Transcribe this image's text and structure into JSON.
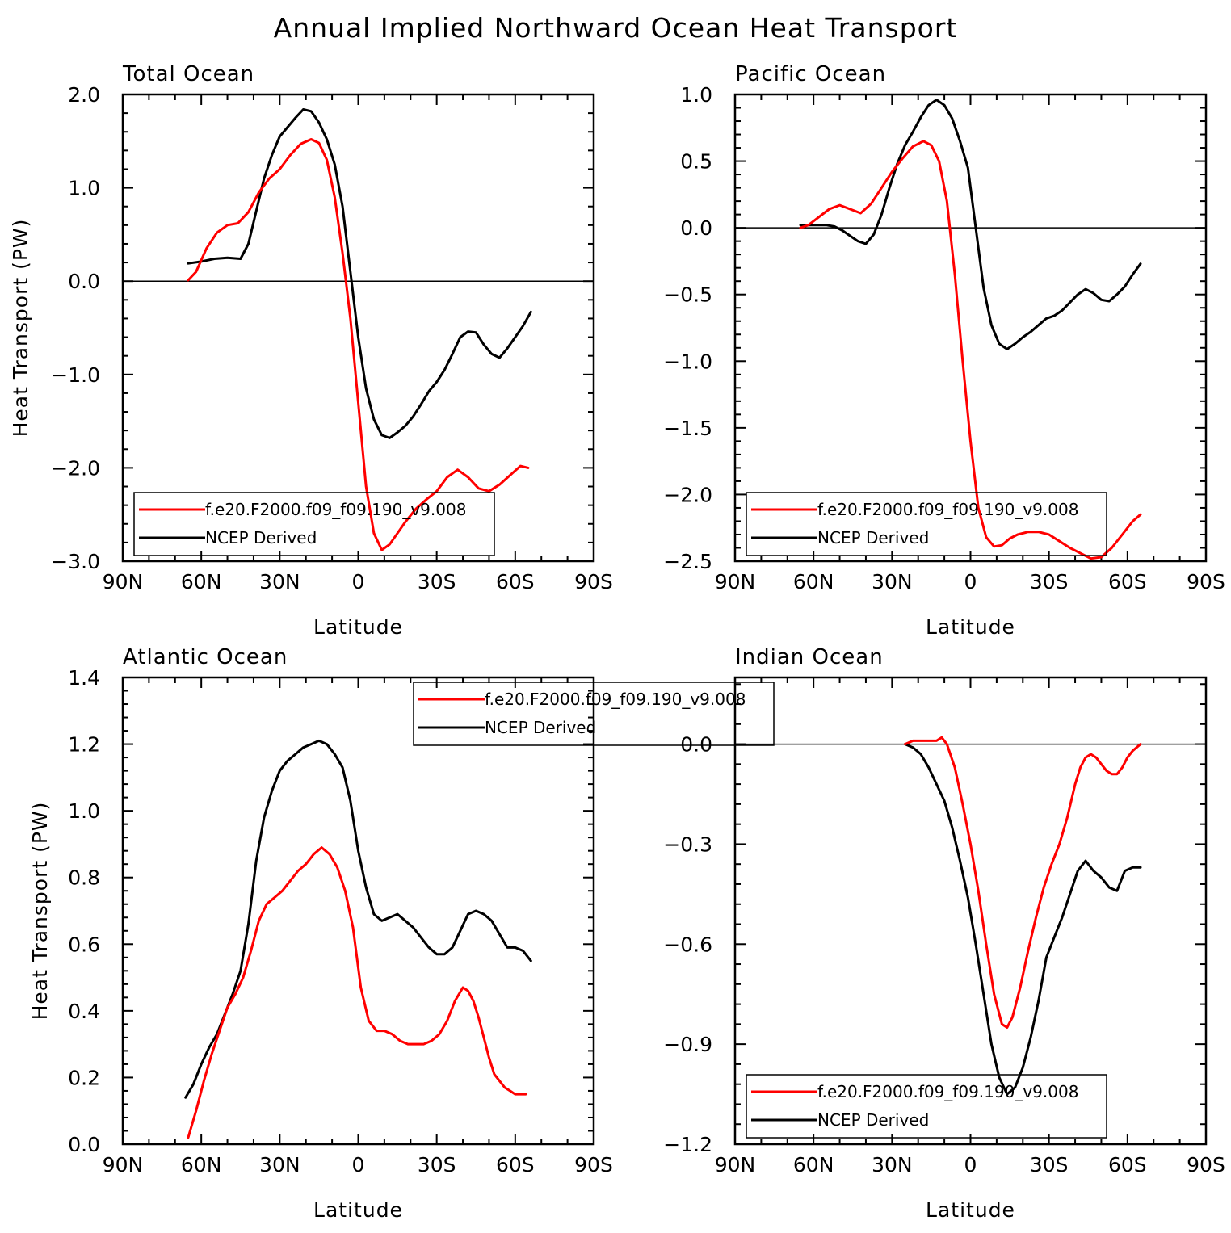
{
  "figure_title": "Annual Implied Northward Ocean Heat Transport",
  "colors": {
    "model": "#ff0000",
    "obs": "#000000"
  },
  "chart_data": [
    {
      "type": "line",
      "title": "Total Ocean",
      "xlabel": "Latitude",
      "ylabel": "Heat Transport (PW)",
      "xlim": [
        90,
        -90
      ],
      "xticks": [
        90,
        60,
        30,
        0,
        -30,
        -60,
        -90
      ],
      "xticklabels": [
        "90N",
        "60N",
        "30N",
        "0",
        "30S",
        "60S",
        "90S"
      ],
      "ylim": [
        -3.0,
        2.0
      ],
      "yticks": [
        -3.0,
        -2.0,
        -1.0,
        0.0,
        1.0,
        2.0
      ],
      "yticklabels": [
        "−3.0",
        "−2.0",
        "−1.0",
        "0.0",
        "1.0",
        "2.0"
      ],
      "legend_labels": [
        "f.e20.F2000.f09_f09.190_v9.008",
        "NCEP Derived"
      ],
      "legend_position": "bottom-left",
      "series": [
        {
          "name": "f.e20.F2000.f09_f09.190_v9.008",
          "color": "#ff0000",
          "x": [
            65,
            62,
            58,
            54,
            50,
            46,
            42,
            38,
            34,
            30,
            26,
            22,
            18,
            15,
            12,
            9,
            6,
            3,
            0,
            -3,
            -6,
            -9,
            -12,
            -15,
            -18,
            -22,
            -26,
            -30,
            -34,
            -38,
            -42,
            -46,
            -50,
            -54,
            -58,
            -62,
            -65
          ],
          "y": [
            0.01,
            0.1,
            0.35,
            0.52,
            0.6,
            0.62,
            0.74,
            0.95,
            1.1,
            1.2,
            1.35,
            1.47,
            1.52,
            1.48,
            1.3,
            0.9,
            0.3,
            -0.4,
            -1.3,
            -2.2,
            -2.7,
            -2.88,
            -2.82,
            -2.7,
            -2.58,
            -2.44,
            -2.34,
            -2.25,
            -2.1,
            -2.02,
            -2.1,
            -2.22,
            -2.25,
            -2.18,
            -2.08,
            -1.98,
            -2.0
          ]
        },
        {
          "name": "NCEP Derived",
          "color": "#000000",
          "x": [
            65,
            60,
            55,
            50,
            45,
            42,
            39,
            36,
            33,
            30,
            27,
            24,
            21,
            18,
            15,
            12,
            9,
            6,
            3,
            0,
            -3,
            -6,
            -9,
            -12,
            -15,
            -18,
            -21,
            -24,
            -27,
            -30,
            -33,
            -36,
            -39,
            -42,
            -45,
            -48,
            -51,
            -54,
            -57,
            -60,
            -63,
            -66
          ],
          "y": [
            0.19,
            0.21,
            0.24,
            0.25,
            0.24,
            0.4,
            0.75,
            1.1,
            1.35,
            1.55,
            1.65,
            1.75,
            1.84,
            1.82,
            1.7,
            1.52,
            1.25,
            0.8,
            0.1,
            -0.6,
            -1.15,
            -1.48,
            -1.65,
            -1.68,
            -1.62,
            -1.55,
            -1.45,
            -1.32,
            -1.18,
            -1.08,
            -0.95,
            -0.78,
            -0.6,
            -0.54,
            -0.55,
            -0.68,
            -0.78,
            -0.82,
            -0.72,
            -0.6,
            -0.48,
            -0.33
          ]
        }
      ]
    },
    {
      "type": "line",
      "title": "Pacific Ocean",
      "xlabel": "Latitude",
      "ylabel": "",
      "xlim": [
        90,
        -90
      ],
      "xticks": [
        90,
        60,
        30,
        0,
        -30,
        -60,
        -90
      ],
      "xticklabels": [
        "90N",
        "60N",
        "30N",
        "0",
        "30S",
        "60S",
        "90S"
      ],
      "ylim": [
        -2.5,
        1.0
      ],
      "yticks": [
        -2.5,
        -2.0,
        -1.5,
        -1.0,
        -0.5,
        0.0,
        0.5,
        1.0
      ],
      "yticklabels": [
        "−2.5",
        "−2.0",
        "−1.5",
        "−1.0",
        "−0.5",
        "0.0",
        "0.5",
        "1.0"
      ],
      "legend_labels": [
        "f.e20.F2000.f09_f09.190_v9.008",
        "NCEP Derived"
      ],
      "legend_position": "bottom-left",
      "series": [
        {
          "name": "f.e20.F2000.f09_f09.190_v9.008",
          "color": "#ff0000",
          "x": [
            65,
            62,
            58,
            54,
            50,
            46,
            42,
            38,
            34,
            30,
            26,
            22,
            18,
            15,
            12,
            9,
            6,
            3,
            0,
            -3,
            -6,
            -9,
            -12,
            -15,
            -18,
            -22,
            -26,
            -30,
            -34,
            -38,
            -42,
            -46,
            -50,
            -54,
            -58,
            -62,
            -65
          ],
          "y": [
            0.0,
            0.02,
            0.08,
            0.14,
            0.17,
            0.14,
            0.11,
            0.18,
            0.3,
            0.42,
            0.52,
            0.61,
            0.65,
            0.62,
            0.5,
            0.2,
            -0.35,
            -1.0,
            -1.6,
            -2.1,
            -2.32,
            -2.39,
            -2.38,
            -2.33,
            -2.3,
            -2.28,
            -2.28,
            -2.3,
            -2.35,
            -2.4,
            -2.44,
            -2.48,
            -2.47,
            -2.4,
            -2.3,
            -2.2,
            -2.15
          ]
        },
        {
          "name": "NCEP Derived",
          "color": "#000000",
          "x": [
            65,
            60,
            55,
            52,
            49,
            46,
            43,
            40,
            37,
            34,
            31,
            28,
            25,
            22,
            19,
            16,
            13,
            10,
            7,
            4,
            1,
            -2,
            -5,
            -8,
            -11,
            -14,
            -17,
            -20,
            -23,
            -26,
            -29,
            -32,
            -35,
            -38,
            -41,
            -44,
            -47,
            -50,
            -53,
            -56,
            -59,
            -62,
            -65
          ],
          "y": [
            0.02,
            0.02,
            0.02,
            0.01,
            -0.02,
            -0.06,
            -0.1,
            -0.12,
            -0.05,
            0.1,
            0.3,
            0.48,
            0.62,
            0.72,
            0.83,
            0.92,
            0.96,
            0.92,
            0.82,
            0.65,
            0.45,
            0.0,
            -0.45,
            -0.73,
            -0.87,
            -0.91,
            -0.87,
            -0.82,
            -0.78,
            -0.73,
            -0.68,
            -0.66,
            -0.62,
            -0.56,
            -0.5,
            -0.46,
            -0.49,
            -0.54,
            -0.55,
            -0.5,
            -0.44,
            -0.35,
            -0.27
          ]
        }
      ]
    },
    {
      "type": "line",
      "title": "Atlantic Ocean",
      "xlabel": "Latitude",
      "ylabel": "Heat Transport (PW)",
      "xlim": [
        90,
        -90
      ],
      "xticks": [
        90,
        60,
        30,
        0,
        -30,
        -60,
        -90
      ],
      "xticklabels": [
        "90N",
        "60N",
        "30N",
        "0",
        "30S",
        "60S",
        "90S"
      ],
      "ylim": [
        0.0,
        1.4
      ],
      "yticks": [
        0.0,
        0.2,
        0.4,
        0.6,
        0.8,
        1.0,
        1.2,
        1.4
      ],
      "yticklabels": [
        "0.0",
        "0.2",
        "0.4",
        "0.6",
        "0.8",
        "1.0",
        "1.2",
        "1.4"
      ],
      "legend_labels": [
        "f.e20.F2000.f09_f09.190_v9.008",
        "NCEP Derived"
      ],
      "legend_position": "top-right",
      "series": [
        {
          "name": "f.e20.F2000.f09_f09.190_v9.008",
          "color": "#ff0000",
          "x": [
            65,
            62,
            59,
            56,
            53,
            50,
            47,
            44,
            41,
            38,
            35,
            32,
            29,
            26,
            23,
            20,
            17,
            14,
            11,
            8,
            5,
            2,
            -1,
            -4,
            -7,
            -10,
            -13,
            -16,
            -19,
            -22,
            -25,
            -28,
            -31,
            -34,
            -37,
            -40,
            -42,
            -44,
            -46,
            -48,
            -50,
            -52,
            -54,
            -56,
            -58,
            -60,
            -62,
            -64
          ],
          "y": [
            0.02,
            0.1,
            0.19,
            0.27,
            0.34,
            0.41,
            0.45,
            0.5,
            0.58,
            0.67,
            0.72,
            0.74,
            0.76,
            0.79,
            0.82,
            0.84,
            0.87,
            0.89,
            0.87,
            0.83,
            0.76,
            0.65,
            0.47,
            0.37,
            0.34,
            0.34,
            0.33,
            0.31,
            0.3,
            0.3,
            0.3,
            0.31,
            0.33,
            0.37,
            0.43,
            0.47,
            0.46,
            0.43,
            0.38,
            0.32,
            0.26,
            0.21,
            0.19,
            0.17,
            0.16,
            0.15,
            0.15,
            0.15
          ]
        },
        {
          "name": "NCEP Derived",
          "color": "#000000",
          "x": [
            66,
            63,
            60,
            57,
            54,
            51,
            48,
            45,
            42,
            39,
            36,
            33,
            30,
            27,
            24,
            21,
            18,
            15,
            12,
            9,
            6,
            3,
            0,
            -3,
            -6,
            -9,
            -12,
            -15,
            -18,
            -21,
            -24,
            -27,
            -30,
            -33,
            -36,
            -39,
            -42,
            -45,
            -48,
            -51,
            -54,
            -57,
            -60,
            -63,
            -66
          ],
          "y": [
            0.14,
            0.18,
            0.24,
            0.29,
            0.33,
            0.39,
            0.45,
            0.52,
            0.66,
            0.85,
            0.98,
            1.06,
            1.12,
            1.15,
            1.17,
            1.19,
            1.2,
            1.21,
            1.2,
            1.17,
            1.13,
            1.03,
            0.88,
            0.77,
            0.69,
            0.67,
            0.68,
            0.69,
            0.67,
            0.65,
            0.62,
            0.59,
            0.57,
            0.57,
            0.59,
            0.64,
            0.69,
            0.7,
            0.69,
            0.67,
            0.63,
            0.59,
            0.59,
            0.58,
            0.55
          ]
        }
      ]
    },
    {
      "type": "line",
      "title": "Indian Ocean",
      "xlabel": "Latitude",
      "ylabel": "",
      "xlim": [
        90,
        -90
      ],
      "xticks": [
        90,
        60,
        30,
        0,
        -30,
        -60,
        -90
      ],
      "xticklabels": [
        "90N",
        "60N",
        "30N",
        "0",
        "30S",
        "60S",
        "90S"
      ],
      "ylim": [
        -1.2,
        0.2
      ],
      "yticks": [
        -1.2,
        -0.9,
        -0.6,
        -0.3,
        0.0
      ],
      "yticklabels": [
        "−1.2",
        "−0.9",
        "−0.6",
        "−0.3",
        "0.0"
      ],
      "legend_labels": [
        "f.e20.F2000.f09_f09.190_v9.008",
        "NCEP Derived"
      ],
      "legend_position": "bottom-left",
      "series": [
        {
          "name": "f.e20.F2000.f09_f09.190_v9.008",
          "color": "#ff0000",
          "x": [
            25,
            22,
            19,
            16,
            13,
            11,
            9,
            6,
            3,
            0,
            -3,
            -6,
            -9,
            -12,
            -14,
            -16,
            -19,
            -22,
            -25,
            -28,
            -31,
            -34,
            -37,
            -40,
            -42,
            -44,
            -46,
            -48,
            -50,
            -52,
            -54,
            -56,
            -58,
            -60,
            -62,
            -65
          ],
          "y": [
            0.0,
            0.01,
            0.01,
            0.01,
            0.01,
            0.02,
            0.0,
            -0.07,
            -0.18,
            -0.3,
            -0.44,
            -0.6,
            -0.75,
            -0.84,
            -0.85,
            -0.82,
            -0.73,
            -0.62,
            -0.52,
            -0.43,
            -0.36,
            -0.3,
            -0.22,
            -0.12,
            -0.07,
            -0.04,
            -0.03,
            -0.04,
            -0.06,
            -0.08,
            -0.09,
            -0.09,
            -0.07,
            -0.04,
            -0.02,
            0.0
          ]
        },
        {
          "name": "NCEP Derived",
          "color": "#000000",
          "x": [
            25,
            22,
            19,
            16,
            13,
            10,
            7,
            4,
            1,
            -2,
            -5,
            -8,
            -11,
            -14,
            -17,
            -20,
            -23,
            -26,
            -29,
            -32,
            -35,
            -38,
            -41,
            -44,
            -47,
            -50,
            -53,
            -56,
            -59,
            -62,
            -65
          ],
          "y": [
            0.0,
            -0.01,
            -0.03,
            -0.07,
            -0.12,
            -0.17,
            -0.25,
            -0.35,
            -0.46,
            -0.6,
            -0.75,
            -0.9,
            -1.0,
            -1.05,
            -1.03,
            -0.97,
            -0.88,
            -0.77,
            -0.64,
            -0.58,
            -0.52,
            -0.45,
            -0.38,
            -0.35,
            -0.38,
            -0.4,
            -0.43,
            -0.44,
            -0.38,
            -0.37,
            -0.37
          ]
        }
      ]
    }
  ]
}
